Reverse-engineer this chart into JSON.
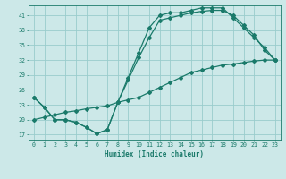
{
  "xlabel": "Humidex (Indice chaleur)",
  "bg_color": "#cce8e8",
  "line_color": "#1a7a6a",
  "grid_color": "#99cccc",
  "xlim": [
    -0.5,
    23.5
  ],
  "ylim": [
    16,
    43
  ],
  "xticks": [
    0,
    1,
    2,
    3,
    4,
    5,
    6,
    7,
    8,
    9,
    10,
    11,
    12,
    13,
    14,
    15,
    16,
    17,
    18,
    19,
    20,
    21,
    22,
    23
  ],
  "yticks": [
    17,
    20,
    23,
    26,
    29,
    32,
    35,
    38,
    41
  ],
  "line_A_x": [
    0,
    1,
    2,
    3,
    4,
    5,
    6,
    7,
    8,
    9,
    10,
    11,
    12,
    13,
    14,
    15,
    16,
    17,
    18,
    19,
    20,
    21,
    22,
    23
  ],
  "line_A_y": [
    24.5,
    22.5,
    20.0,
    20.0,
    19.5,
    18.5,
    17.2,
    18.0,
    23.5,
    28.0,
    32.5,
    36.5,
    40.0,
    40.5,
    41.0,
    41.5,
    41.8,
    42.0,
    42.0,
    41.0,
    39.0,
    37.0,
    34.0,
    32.0
  ],
  "line_B_x": [
    0,
    1,
    2,
    3,
    4,
    5,
    6,
    7,
    8,
    9,
    10,
    11,
    12,
    13,
    14,
    15,
    16,
    17,
    18,
    19,
    20,
    21,
    22,
    23
  ],
  "line_B_y": [
    24.5,
    22.5,
    20.0,
    20.0,
    19.5,
    18.5,
    17.2,
    18.0,
    23.5,
    28.5,
    33.5,
    38.5,
    41.0,
    41.5,
    41.5,
    42.0,
    42.5,
    42.5,
    42.5,
    40.5,
    38.5,
    36.5,
    34.5,
    32.0
  ],
  "line_C_x": [
    0,
    1,
    2,
    3,
    4,
    5,
    6,
    7,
    8,
    9,
    10,
    11,
    12,
    13,
    14,
    15,
    16,
    17,
    18,
    19,
    20,
    21,
    22,
    23
  ],
  "line_C_y": [
    20.0,
    20.5,
    21.0,
    21.5,
    21.8,
    22.2,
    22.5,
    22.8,
    23.5,
    24.0,
    24.5,
    25.5,
    26.5,
    27.5,
    28.5,
    29.5,
    30.0,
    30.5,
    31.0,
    31.2,
    31.5,
    31.8,
    32.0,
    32.0
  ],
  "xlabel_fontsize": 5.5,
  "tick_fontsize": 4.8
}
